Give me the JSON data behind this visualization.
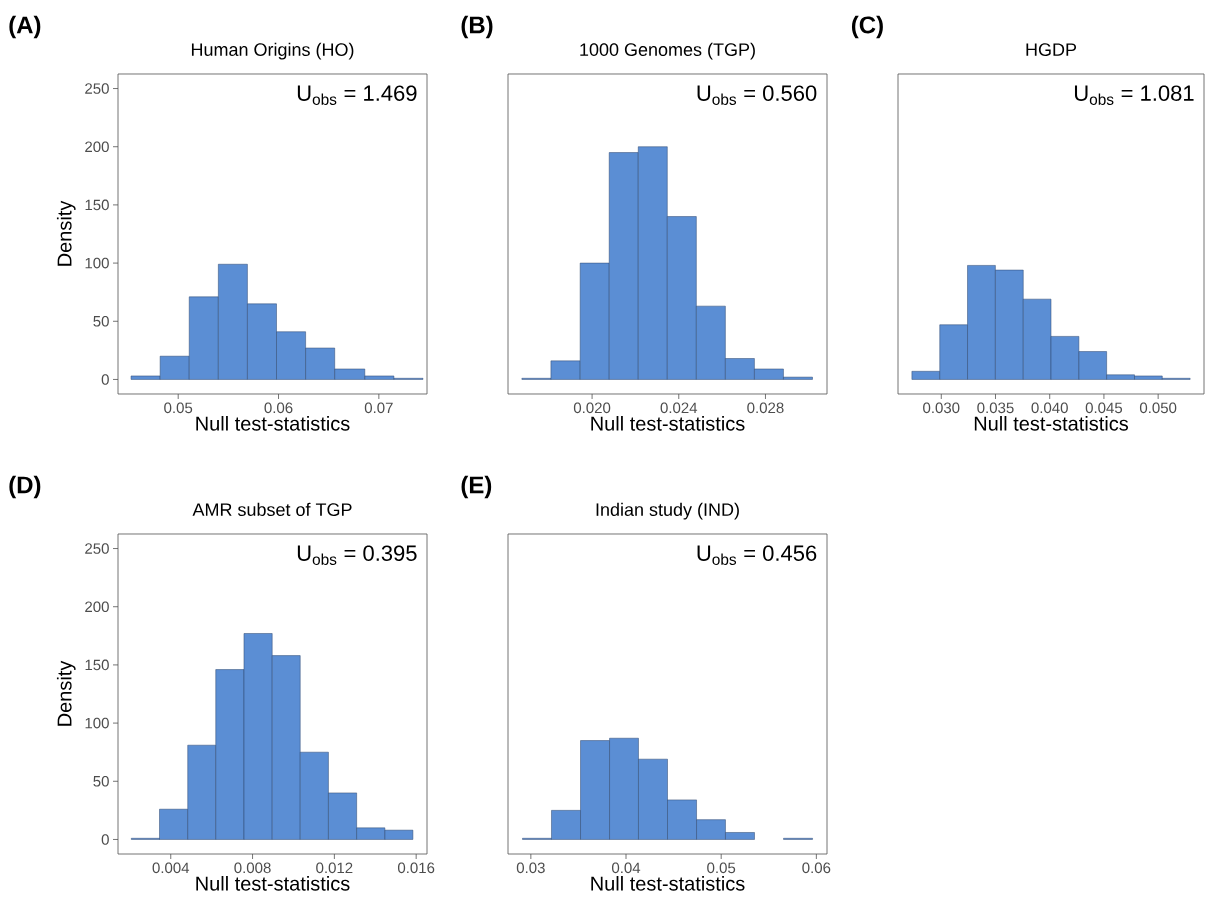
{
  "chart_data": [
    {
      "type": "histogram",
      "title": "Human Origins (HO)",
      "xlabel": "Null test-statistics",
      "ylabel": "Density",
      "annotations": [
        "(A)",
        "U$_{obs}$ = 1.469"
      ],
      "color": "#5b8ed4",
      "bins": [
        0.0453,
        0.0482,
        0.0511,
        0.054,
        0.0569,
        0.0598,
        0.0627,
        0.0656,
        0.0686,
        0.0715,
        0.0744
      ],
      "values": [
        3,
        20,
        71,
        99,
        65,
        41,
        27,
        9,
        3,
        1
      ],
      "xlim": [
        0.044,
        0.0748
      ],
      "xticks": [
        0.05,
        0.06,
        0.07
      ],
      "ylim": [
        -12.5,
        262.5
      ],
      "yticks": [
        0,
        50,
        100,
        150,
        200,
        250
      ],
      "grid": false
    },
    {
      "type": "histogram",
      "title": "1000 Genomes (TGP)",
      "xlabel": "Null test-statistics",
      "annotations": [
        "(B)",
        "U$_{obs}$ = 0.560"
      ],
      "color": "#5b8ed4",
      "bins": [
        0.01676,
        0.0181,
        0.01945,
        0.02079,
        0.02213,
        0.02347,
        0.02481,
        0.02615,
        0.02749,
        0.02883,
        0.03017
      ],
      "values": [
        1,
        16,
        100,
        195,
        200,
        140,
        63,
        18,
        9,
        2
      ],
      "xlim": [
        0.01612,
        0.03084
      ],
      "xticks": [
        {
          "value": 0.02,
          "label": "0.020"
        },
        0.024,
        0.028
      ],
      "ylim": [
        -12.5,
        262.5
      ],
      "tick_labels": "x",
      "grid": false
    },
    {
      "type": "histogram",
      "title": "HGDP",
      "xlabel": "Null test-statistics",
      "annotations": [
        "(C)",
        "U$_{obs}$ = 1.081"
      ],
      "color": "#5b8ed4",
      "bins": [
        0.02729,
        0.02986,
        0.03242,
        0.03499,
        0.03756,
        0.04012,
        0.04269,
        0.04525,
        0.04782,
        0.05038,
        0.05295
      ],
      "values": [
        7,
        47,
        98,
        94,
        69,
        37,
        24,
        4,
        3,
        1
      ],
      "xlim": [
        0.02601,
        0.05423
      ],
      "xticks": [
        {
          "value": 0.03,
          "label": "0.030"
        },
        0.035,
        {
          "value": 0.04,
          "label": "0.040"
        },
        0.045,
        {
          "value": 0.05,
          "label": "0.050"
        }
      ],
      "ylim": [
        -12.5,
        262.5
      ],
      "tick_labels": "x",
      "grid": false
    },
    {
      "type": "histogram",
      "title": "AMR subset of TGP",
      "xlabel": "Null test-statistics",
      "ylabel": "Density",
      "annotations": [
        "(D)",
        "U$_{obs}$ = 0.395"
      ],
      "color": "#5b8ed4",
      "bins": [
        0.00207,
        0.00345,
        0.00483,
        0.0062,
        0.00758,
        0.00896,
        0.01033,
        0.01171,
        0.01309,
        0.01447,
        0.01584
      ],
      "values": [
        1,
        26,
        81,
        146,
        177,
        158,
        75,
        40,
        10,
        8
      ],
      "xlim": [
        0.00142,
        0.01653
      ],
      "xticks": [
        0.004,
        0.008,
        0.012,
        0.016
      ],
      "ylim": [
        -12.5,
        262.5
      ],
      "yticks": [
        0,
        50,
        100,
        150,
        200,
        250
      ],
      "grid": false
    },
    {
      "type": "histogram",
      "title": "Indian study (IND)",
      "xlabel": "Null test-statistics",
      "annotations": [
        "(E)",
        "U$_{obs}$ = 0.456"
      ],
      "color": "#5b8ed4",
      "bins": [
        0.02912,
        0.03217,
        0.03522,
        0.03827,
        0.04131,
        0.04436,
        0.04741,
        0.05045,
        0.0535,
        0.05655,
        0.0596
      ],
      "values": [
        1,
        25,
        85,
        87,
        69,
        34,
        17,
        6,
        0,
        1
      ],
      "xlim": [
        0.0276,
        0.06112
      ],
      "xticks": [
        0.03,
        0.04,
        0.05,
        0.06
      ],
      "ylim": [
        -12.5,
        262.5
      ],
      "tick_labels": "x",
      "grid": false
    }
  ]
}
